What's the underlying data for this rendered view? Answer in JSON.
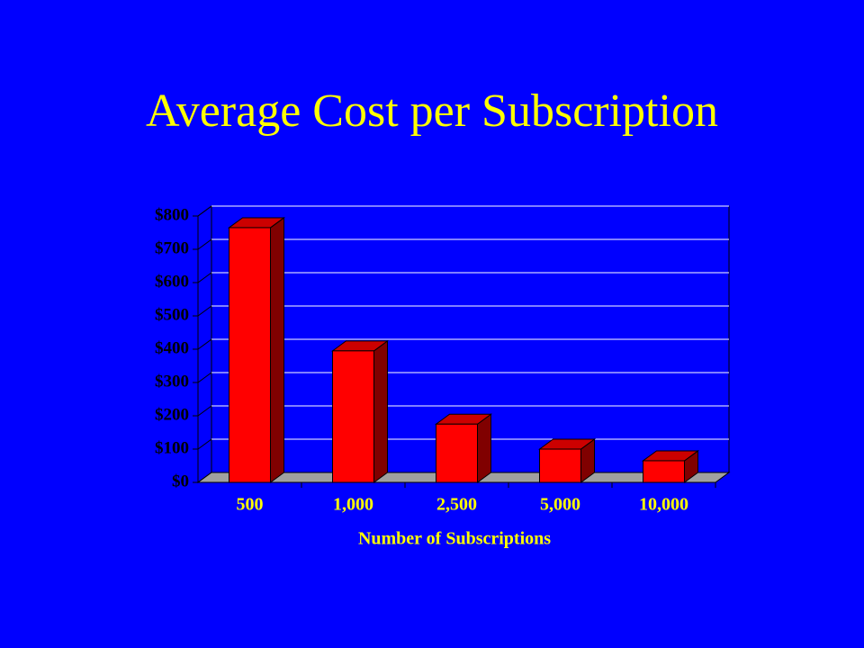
{
  "chart_data": {
    "type": "bar3d",
    "title": "Average Cost per Subscription",
    "x_label": "Number of Subscriptions",
    "categories": [
      "500",
      "1,000",
      "2,500",
      "5,000",
      "10,000"
    ],
    "values": [
      765,
      395,
      175,
      100,
      65
    ],
    "color": "#ff0000",
    "ylim": [
      0,
      800
    ],
    "yticks": [
      {
        "value": 0,
        "label": "$0"
      },
      {
        "value": 100,
        "label": "$100"
      },
      {
        "value": 200,
        "label": "$200"
      },
      {
        "value": 300,
        "label": "$300"
      },
      {
        "value": 400,
        "label": "$400"
      },
      {
        "value": 500,
        "label": "$500"
      },
      {
        "value": 600,
        "label": "$600"
      },
      {
        "value": 700,
        "label": "$700"
      },
      {
        "value": 800,
        "label": "$800"
      }
    ],
    "grid": true
  }
}
